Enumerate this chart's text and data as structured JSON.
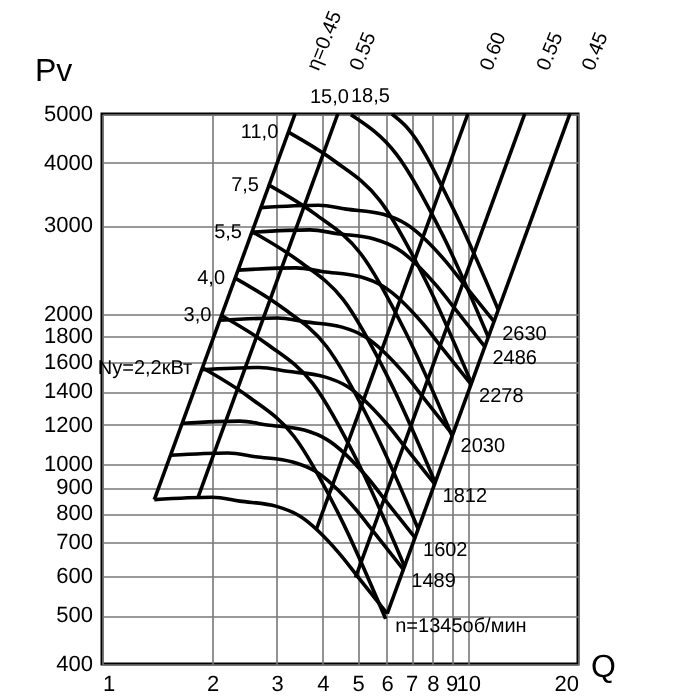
{
  "chart_data": {
    "type": "line",
    "xlabel": "Q",
    "ylabel": "Pv",
    "log": "xy",
    "grid": true,
    "xlim": [
      1,
      20
    ],
    "xticks": [
      1,
      2,
      3,
      4,
      5,
      6,
      7,
      8,
      9,
      10,
      20
    ],
    "ylim": [
      400,
      5000
    ],
    "yticks": [
      400,
      500,
      600,
      700,
      800,
      900,
      1000,
      1200,
      1400,
      1600,
      1800,
      2000,
      3000,
      4000,
      5000
    ],
    "series": [
      {
        "color": "#000000",
        "x": [
          1.39,
          2.0,
          2.38,
          3.0,
          3.46,
          4.45,
          5.05,
          6.02
        ],
        "values": [
          851,
          860,
          845,
          825,
          790,
          665,
          592,
          504
        ]
      },
      {
        "color": "#000000",
        "x": [
          1.54,
          2.21,
          2.63,
          3.32,
          3.83,
          4.93,
          5.59,
          6.66
        ],
        "values": [
          1043,
          1054,
          1036,
          1011,
          969,
          815,
          726,
          618
        ]
      },
      {
        "color": "#000000",
        "x": [
          1.66,
          2.38,
          2.83,
          3.57,
          4.12,
          5.3,
          6.01,
          7.17
        ],
        "values": [
          1208,
          1220,
          1199,
          1171,
          1121,
          944,
          840,
          715
        ]
      },
      {
        "color": "#000000",
        "x": [
          1.87,
          2.69,
          3.21,
          4.04,
          4.66,
          5.99,
          6.8,
          8.11
        ],
        "values": [
          1545,
          1561,
          1534,
          1497,
          1434,
          1207,
          1074,
          915
        ]
      },
      {
        "color": "#000000",
        "x": [
          2.1,
          3.02,
          3.59,
          4.53,
          5.22,
          6.72,
          7.62,
          9.08
        ],
        "values": [
          1939,
          1959,
          1925,
          1879,
          1800,
          1515,
          1349,
          1148
        ]
      },
      {
        "color": "#000000",
        "x": [
          2.35,
          3.39,
          4.03,
          5.08,
          5.86,
          7.54,
          8.55,
          10.2
        ],
        "values": [
          2441,
          2467,
          2424,
          2367,
          2267,
          1908,
          1698,
          1446
        ]
      },
      {
        "color": "#000000",
        "x": [
          2.57,
          3.7,
          4.4,
          5.54,
          6.39,
          8.22,
          9.33,
          11.1
        ],
        "values": [
          2906,
          2937,
          2886,
          2817,
          2698,
          2271,
          2022,
          1721
        ]
      },
      {
        "color": "#000000",
        "x": [
          2.72,
          3.91,
          4.65,
          5.87,
          6.76,
          8.7,
          9.87,
          11.8
        ],
        "values": [
          3253,
          3288,
          3230,
          3154,
          3020,
          2542,
          2263,
          1927
        ]
      },
      {
        "color": "#000000",
        "x": [
          1.88,
          2.51,
          3.35,
          4.47,
          5.96
        ],
        "values": [
          1559,
          1366,
          1137,
          787,
          492
        ]
      },
      {
        "color": "#000000",
        "x": [
          2.12,
          2.83,
          3.77,
          5.04,
          6.72
        ],
        "values": [
          1982,
          1737,
          1449,
          1000,
          625
        ]
      },
      {
        "color": "#000000",
        "x": [
          2.31,
          3.08,
          4.11,
          5.49,
          7.32
        ],
        "values": [
          2353,
          2065,
          1719,
          1188,
          743
        ]
      },
      {
        "color": "#000000",
        "x": [
          2.57,
          3.43,
          4.57,
          6.1,
          8.15
        ],
        "values": [
          2913,
          2554,
          2129,
          1473,
          919
        ]
      },
      {
        "color": "#000000",
        "x": [
          2.86,
          3.82,
          5.09,
          6.79,
          9.07
        ],
        "values": [
          3607,
          3160,
          2635,
          1823,
          1137
        ]
      },
      {
        "color": "#000000",
        "x": [
          3.23,
          4.31,
          5.75,
          7.67,
          10.24
        ],
        "values": [
          4601,
          4034,
          3360,
          2325,
          1451
        ]
      },
      {
        "color": "#000000",
        "x": [
          4.79,
          6.39,
          8.53,
          11.38
        ],
        "values": [
          4983,
          4150,
          2870,
          1793
        ]
      },
      {
        "color": "#000000",
        "x": [
          6.2,
          6.8,
          9.07,
          12.11
        ],
        "values": [
          5000,
          4711,
          3260,
          2035
        ]
      },
      {
        "color": "#000000",
        "x": [
          1.39,
          3.37
        ],
        "values": [
          851,
          5000
        ]
      },
      {
        "color": "#000000",
        "x": [
          1.83,
          4.41
        ],
        "values": [
          860,
          5000
        ]
      },
      {
        "color": "#000000",
        "x": [
          3.85,
          10.0
        ],
        "values": [
          741,
          5000
        ]
      },
      {
        "color": "#000000",
        "x": [
          4.93,
          14.3
        ],
        "values": [
          595,
          5000
        ]
      },
      {
        "color": "#000000",
        "x": [
          6.02,
          19.0
        ],
        "values": [
          504,
          5000
        ]
      }
    ],
    "annotations": [
      {
        "text": "n=1345об/мин",
        "x": 6.02,
        "y": 504
      },
      {
        "text": "1489",
        "x": 6.66,
        "y": 618
      },
      {
        "text": "1602",
        "x": 7.17,
        "y": 715
      },
      {
        "text": "1812",
        "x": 8.11,
        "y": 915
      },
      {
        "text": "2030",
        "x": 9.08,
        "y": 1148
      },
      {
        "text": "2278",
        "x": 10.2,
        "y": 1446
      },
      {
        "text": "2486",
        "x": 11.1,
        "y": 1721
      },
      {
        "text": "2630",
        "x": 11.8,
        "y": 1927
      },
      {
        "text": "Ny=2,2кВт",
        "x": 1.88,
        "y": 1559
      },
      {
        "text": "3,0",
        "x": 2.12,
        "y": 1982
      },
      {
        "text": "4,0",
        "x": 2.31,
        "y": 2353
      },
      {
        "text": "5,5",
        "x": 2.57,
        "y": 2913
      },
      {
        "text": "7,5",
        "x": 2.86,
        "y": 3607
      },
      {
        "text": "11,0",
        "x": 3.23,
        "y": 4601
      },
      {
        "text": "15,0",
        "x": 4.79,
        "y": 4983
      },
      {
        "text": "18,5",
        "x": 6.2,
        "y": 5000
      },
      {
        "text": "η=0.45",
        "x": 3.37,
        "y": 5000
      },
      {
        "text": "0.55",
        "x": 4.41,
        "y": 5000
      },
      {
        "text": "0.60",
        "x": 10.0,
        "y": 5000
      },
      {
        "text": "0.55",
        "x": 14.3,
        "y": 5000
      },
      {
        "text": "0.45",
        "x": 19.0,
        "y": 5000
      }
    ]
  }
}
